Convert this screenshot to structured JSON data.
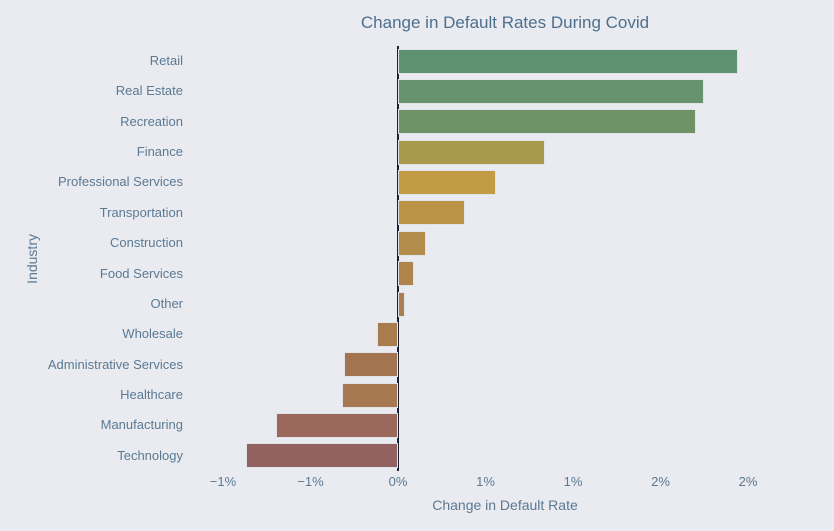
{
  "title": "Change in Default Rates During Covid",
  "chart_data": {
    "type": "bar",
    "orientation": "horizontal",
    "title": "Change in Default Rates During Covid",
    "xlabel": "Change in Default Rate",
    "ylabel": "Industry",
    "units": "%",
    "grid": false,
    "legend": "none",
    "xlim": [
      -1.19,
      2.41
    ],
    "categories": [
      "Retail",
      "Real Estate",
      "Recreation",
      "Finance",
      "Professional Services",
      "Transportation",
      "Construction",
      "Food Services",
      "Other",
      "Wholesale",
      "Administrative Services",
      "Healthcare",
      "Manufacturing",
      "Technology"
    ],
    "values": [
      1.94,
      1.75,
      1.7,
      0.84,
      0.56,
      0.38,
      0.16,
      0.09,
      0.04,
      -0.12,
      -0.31,
      -0.32,
      -0.7,
      -0.87
    ],
    "bar_colors": [
      "#5e9170",
      "#68936f",
      "#6f9367",
      "#a89a4d",
      "#c19c44",
      "#bb9347",
      "#b28c4a",
      "#ae844c",
      "#aa7f4d",
      "#a87c4b",
      "#a2744f",
      "#a57851",
      "#9a695c",
      "#93615f"
    ],
    "x_ticks": [
      {
        "value": -1.0,
        "label": "−1%"
      },
      {
        "value": -0.5,
        "label": "−1%"
      },
      {
        "value": 0.0,
        "label": "0%"
      },
      {
        "value": 0.5,
        "label": "1%"
      },
      {
        "value": 1.0,
        "label": "1%"
      },
      {
        "value": 1.5,
        "label": "2%"
      },
      {
        "value": 2.0,
        "label": "2%"
      }
    ]
  },
  "colors": {
    "background": "#e9ebf0",
    "title_text": "#4d6f8e",
    "axis_text": "#5b7993",
    "zero_line": "#1a2233",
    "bar_outline": "#e0e4ea"
  }
}
